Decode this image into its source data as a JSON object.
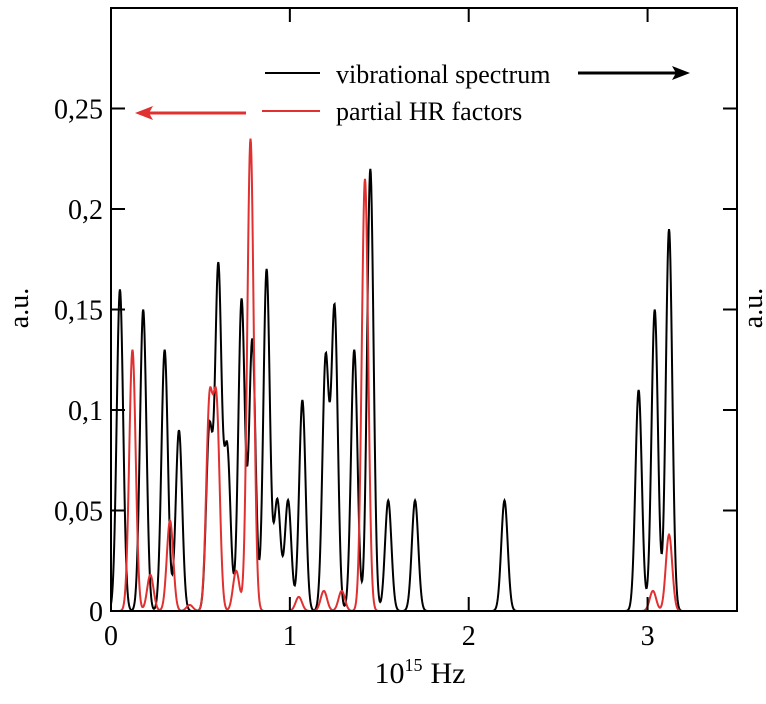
{
  "chart_data": {
    "type": "line",
    "title": "",
    "xlabel": "10",
    "xlabel_sup": "15",
    "xlabel_unit": "Hz",
    "ylabel": "a.u.",
    "ylabel_right": "a.u.",
    "xlim": [
      0,
      3.5
    ],
    "ylim": [
      0,
      0.3
    ],
    "x_ticks": [
      0,
      1,
      2,
      3
    ],
    "x_tick_labels": [
      "0",
      "1",
      "2",
      "3"
    ],
    "y_ticks": [
      0,
      0.05,
      0.1,
      0.15,
      0.2,
      0.25
    ],
    "y_tick_labels": [
      "0",
      "0,05",
      "0,1",
      "0,15",
      "0,2",
      "0,25"
    ],
    "grid": false,
    "legend_position": "top-center",
    "series": [
      {
        "name": "vibrational spectrum",
        "color": "#000000",
        "axis": "right",
        "peaks": [
          {
            "x": 0.05,
            "h": 0.16
          },
          {
            "x": 0.18,
            "h": 0.15
          },
          {
            "x": 0.3,
            "h": 0.13
          },
          {
            "x": 0.38,
            "h": 0.09
          },
          {
            "x": 0.55,
            "h": 0.09
          },
          {
            "x": 0.6,
            "h": 0.17
          },
          {
            "x": 0.65,
            "h": 0.08
          },
          {
            "x": 0.73,
            "h": 0.155
          },
          {
            "x": 0.79,
            "h": 0.135
          },
          {
            "x": 0.87,
            "h": 0.17
          },
          {
            "x": 0.93,
            "h": 0.055
          },
          {
            "x": 0.99,
            "h": 0.055
          },
          {
            "x": 1.07,
            "h": 0.105
          },
          {
            "x": 1.2,
            "h": 0.125
          },
          {
            "x": 1.25,
            "h": 0.15
          },
          {
            "x": 1.36,
            "h": 0.13
          },
          {
            "x": 1.45,
            "h": 0.22
          },
          {
            "x": 1.55,
            "h": 0.055
          },
          {
            "x": 1.7,
            "h": 0.055
          },
          {
            "x": 2.2,
            "h": 0.055
          },
          {
            "x": 2.95,
            "h": 0.11
          },
          {
            "x": 3.04,
            "h": 0.15
          },
          {
            "x": 3.12,
            "h": 0.19
          }
        ]
      },
      {
        "name": "partial HR factors",
        "color": "#e03030",
        "axis": "left",
        "peaks": [
          {
            "x": 0.12,
            "h": 0.13
          },
          {
            "x": 0.22,
            "h": 0.018
          },
          {
            "x": 0.33,
            "h": 0.045
          },
          {
            "x": 0.44,
            "h": 0.003
          },
          {
            "x": 0.55,
            "h": 0.1
          },
          {
            "x": 0.59,
            "h": 0.1
          },
          {
            "x": 0.7,
            "h": 0.02
          },
          {
            "x": 0.78,
            "h": 0.235
          },
          {
            "x": 1.05,
            "h": 0.007
          },
          {
            "x": 1.19,
            "h": 0.01
          },
          {
            "x": 1.29,
            "h": 0.01
          },
          {
            "x": 1.42,
            "h": 0.215
          },
          {
            "x": 3.03,
            "h": 0.01
          },
          {
            "x": 3.12,
            "h": 0.038
          }
        ]
      }
    ]
  }
}
